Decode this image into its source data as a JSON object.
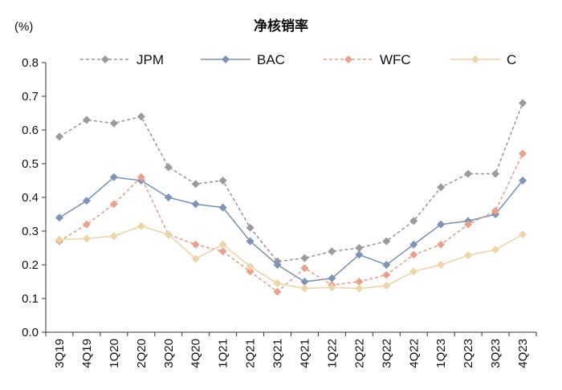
{
  "chart_data": {
    "type": "line",
    "title": "净核销率",
    "ylabel": "(%)",
    "xlabel": "",
    "ylim": [
      0,
      0.8
    ],
    "yticks": [
      "0.0",
      "0.1",
      "0.2",
      "0.3",
      "0.4",
      "0.5",
      "0.6",
      "0.7",
      "0.8"
    ],
    "categories": [
      "3Q19",
      "4Q19",
      "1Q20",
      "2Q20",
      "3Q20",
      "4Q20",
      "1Q21",
      "2Q21",
      "3Q21",
      "4Q21",
      "1Q22",
      "2Q22",
      "3Q22",
      "4Q22",
      "1Q23",
      "2Q23",
      "3Q23",
      "4Q23"
    ],
    "legend_position": "top",
    "series": [
      {
        "name": "JPM",
        "color": "#9b9b9b",
        "dashed": true,
        "values": [
          0.58,
          0.63,
          0.62,
          0.64,
          0.49,
          0.44,
          0.45,
          0.31,
          0.21,
          0.22,
          0.24,
          0.25,
          0.27,
          0.33,
          0.43,
          0.47,
          0.47,
          0.68
        ]
      },
      {
        "name": "BAC",
        "color": "#7f93b5",
        "dashed": false,
        "values": [
          0.34,
          0.39,
          0.46,
          0.45,
          0.4,
          0.38,
          0.37,
          0.27,
          0.2,
          0.15,
          0.16,
          0.23,
          0.2,
          0.26,
          0.32,
          0.33,
          0.35,
          0.45
        ]
      },
      {
        "name": "WFC",
        "color": "#e6a28c",
        "dashed": true,
        "values": [
          0.27,
          0.32,
          0.38,
          0.46,
          0.29,
          0.26,
          0.24,
          0.18,
          0.12,
          0.19,
          0.14,
          0.15,
          0.17,
          0.23,
          0.26,
          0.32,
          0.36,
          0.53
        ]
      },
      {
        "name": "C",
        "color": "#eed4aa",
        "dashed": false,
        "values": [
          0.275,
          0.278,
          0.285,
          0.315,
          0.29,
          0.218,
          0.26,
          0.195,
          0.145,
          0.13,
          0.133,
          0.13,
          0.138,
          0.18,
          0.2,
          0.228,
          0.245,
          0.29
        ]
      }
    ]
  }
}
